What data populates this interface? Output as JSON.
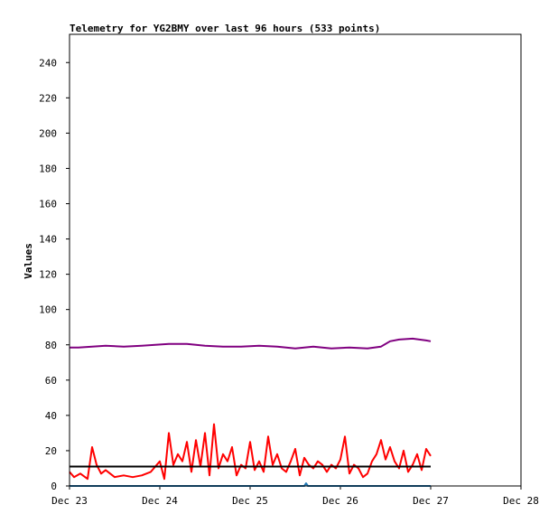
{
  "chart_data": {
    "type": "line",
    "title": "Telemetry for YG2BMY over last 96 hours (533 points)",
    "xlabel": "",
    "ylabel": "Values",
    "x_ticks": [
      "Dec 23",
      "Dec 24",
      "Dec 25",
      "Dec 26",
      "Dec 27",
      "Dec 28"
    ],
    "xlim": [
      "Dec 23",
      "Dec 28"
    ],
    "y_ticks": [
      0,
      20,
      40,
      60,
      80,
      100,
      120,
      140,
      160,
      180,
      200,
      220,
      240
    ],
    "ylim": [
      0,
      256
    ],
    "grid": false,
    "legend": "none",
    "series": [
      {
        "color": "#800080",
        "x_days": [
          0.0,
          0.1,
          0.25,
          0.4,
          0.6,
          0.8,
          0.95,
          1.1,
          1.3,
          1.5,
          1.7,
          1.9,
          2.1,
          2.3,
          2.5,
          2.7,
          2.9,
          3.1,
          3.3,
          3.45,
          3.55,
          3.65,
          3.8,
          3.95,
          4.0
        ],
        "values": [
          78.5,
          78.5,
          79,
          79.5,
          79,
          79.5,
          80,
          80.5,
          80.5,
          79.5,
          79,
          79,
          79.5,
          79,
          78,
          79,
          78,
          78.5,
          78,
          79,
          82,
          83,
          83.5,
          82.5,
          82
        ]
      },
      {
        "color": "#ff0000",
        "x_days": [
          0.0,
          0.05,
          0.12,
          0.2,
          0.25,
          0.3,
          0.35,
          0.4,
          0.5,
          0.6,
          0.7,
          0.8,
          0.9,
          1.0,
          1.05,
          1.1,
          1.15,
          1.2,
          1.25,
          1.3,
          1.35,
          1.4,
          1.45,
          1.5,
          1.55,
          1.6,
          1.65,
          1.7,
          1.75,
          1.8,
          1.85,
          1.9,
          1.95,
          2.0,
          2.05,
          2.1,
          2.15,
          2.2,
          2.25,
          2.3,
          2.35,
          2.4,
          2.45,
          2.5,
          2.55,
          2.6,
          2.65,
          2.7,
          2.75,
          2.8,
          2.85,
          2.9,
          2.95,
          3.0,
          3.05,
          3.1,
          3.15,
          3.2,
          3.25,
          3.3,
          3.35,
          3.4,
          3.45,
          3.5,
          3.55,
          3.6,
          3.65,
          3.7,
          3.75,
          3.8,
          3.85,
          3.9,
          3.95,
          4.0
        ],
        "values": [
          8,
          5,
          7,
          4,
          22,
          12,
          7,
          9,
          5,
          6,
          5,
          6,
          8,
          14,
          4,
          30,
          12,
          18,
          14,
          25,
          8,
          26,
          11,
          30,
          6,
          35,
          10,
          18,
          14,
          22,
          6,
          12,
          10,
          25,
          9,
          14,
          8,
          28,
          12,
          18,
          10,
          8,
          14,
          21,
          6,
          16,
          12,
          10,
          14,
          12,
          8,
          12,
          10,
          15,
          28,
          7,
          12,
          10,
          5,
          7,
          14,
          18,
          26,
          15,
          22,
          14,
          10,
          20,
          8,
          12,
          18,
          9,
          21,
          17
        ]
      },
      {
        "color": "#000000",
        "x_days": [
          0.0,
          4.0
        ],
        "values": [
          11,
          11
        ]
      },
      {
        "color": "#1f77b4",
        "x_days": [
          0.0,
          1.0,
          2.0,
          2.6,
          2.62,
          2.64,
          3.0,
          4.0
        ],
        "values": [
          0,
          0,
          0,
          0,
          1.5,
          0,
          0,
          0
        ]
      }
    ]
  }
}
